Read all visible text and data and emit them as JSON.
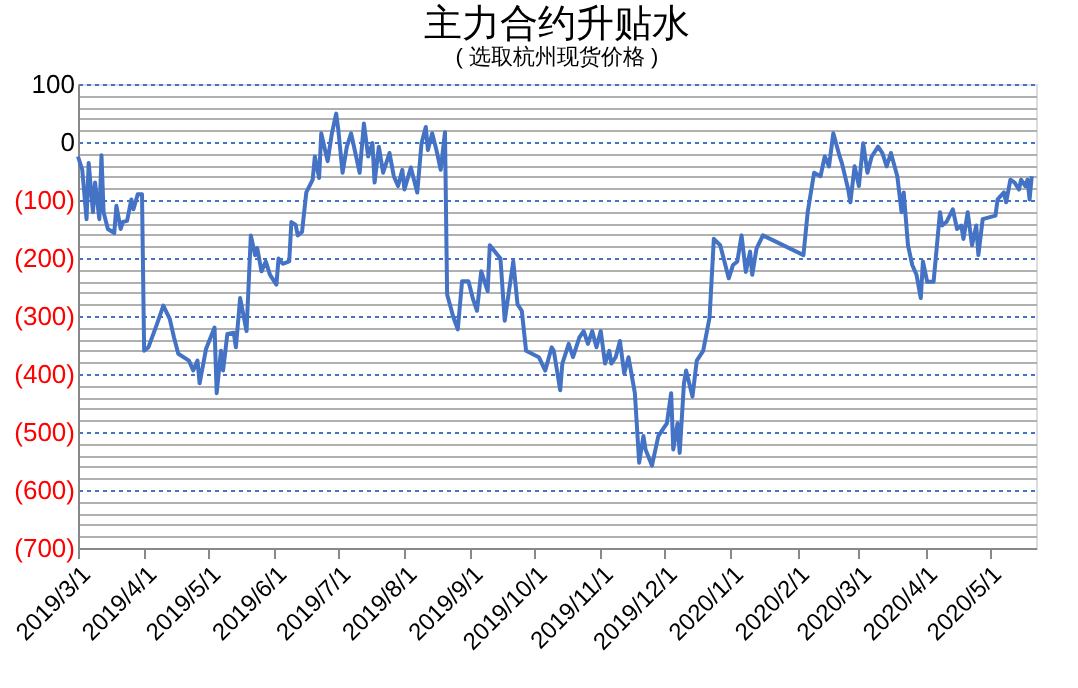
{
  "chart_data": {
    "type": "line",
    "title": "主力合约升贴水",
    "subtitle": "( 选取杭州现货价格 )",
    "x": [
      "2019-03-01",
      "2019-03-03",
      "2019-03-05",
      "2019-03-06",
      "2019-03-08",
      "2019-03-09",
      "2019-03-11",
      "2019-03-12",
      "2019-03-13",
      "2019-03-15",
      "2019-03-18",
      "2019-03-19",
      "2019-03-21",
      "2019-03-22",
      "2019-03-24",
      "2019-03-26",
      "2019-03-27",
      "2019-03-29",
      "2019-03-31",
      "2019-04-01",
      "2019-04-03",
      "2019-04-07",
      "2019-04-10",
      "2019-04-13",
      "2019-04-15",
      "2019-04-17",
      "2019-04-22",
      "2019-04-24",
      "2019-04-26",
      "2019-04-27",
      "2019-04-30",
      "2019-05-04",
      "2019-05-05",
      "2019-05-07",
      "2019-05-08",
      "2019-05-10",
      "2019-05-13",
      "2019-05-14",
      "2019-05-16",
      "2019-05-19",
      "2019-05-21",
      "2019-05-23",
      "2019-05-24",
      "2019-05-26",
      "2019-05-28",
      "2019-05-30",
      "2019-06-02",
      "2019-06-03",
      "2019-06-05",
      "2019-06-08",
      "2019-06-09",
      "2019-06-11",
      "2019-06-12",
      "2019-06-14",
      "2019-06-16",
      "2019-06-19",
      "2019-06-20",
      "2019-06-22",
      "2019-06-23",
      "2019-06-26",
      "2019-06-28",
      "2019-06-30",
      "2019-07-01",
      "2019-07-03",
      "2019-07-05",
      "2019-07-07",
      "2019-07-11",
      "2019-07-13",
      "2019-07-15",
      "2019-07-17",
      "2019-07-18",
      "2019-07-20",
      "2019-07-22",
      "2019-07-25",
      "2019-07-27",
      "2019-07-29",
      "2019-07-31",
      "2019-08-01",
      "2019-08-04",
      "2019-08-07",
      "2019-08-09",
      "2019-08-11",
      "2019-08-12",
      "2019-08-14",
      "2019-08-16",
      "2019-08-18",
      "2019-08-20",
      "2019-08-21",
      "2019-08-24",
      "2019-08-26",
      "2019-08-28",
      "2019-08-31",
      "2019-09-02",
      "2019-09-04",
      "2019-09-06",
      "2019-09-09",
      "2019-09-10",
      "2019-09-13",
      "2019-09-15",
      "2019-09-17",
      "2019-09-19",
      "2019-09-21",
      "2019-09-23",
      "2019-09-25",
      "2019-09-27",
      "2019-10-03",
      "2019-10-06",
      "2019-10-09",
      "2019-10-10",
      "2019-10-13",
      "2019-10-14",
      "2019-10-17",
      "2019-10-19",
      "2019-10-22",
      "2019-10-24",
      "2019-10-26",
      "2019-10-28",
      "2019-10-30",
      "2019-11-01",
      "2019-11-03",
      "2019-11-05",
      "2019-11-06",
      "2019-11-08",
      "2019-11-10",
      "2019-11-12",
      "2019-11-14",
      "2019-11-17",
      "2019-11-19",
      "2019-11-21",
      "2019-11-22",
      "2019-11-25",
      "2019-11-28",
      "2019-11-30",
      "2019-12-02",
      "2019-12-04",
      "2019-12-05",
      "2019-12-07",
      "2019-12-08",
      "2019-12-10",
      "2019-12-11",
      "2019-12-14",
      "2019-12-16",
      "2019-12-19",
      "2019-12-22",
      "2019-12-24",
      "2019-12-27",
      "2019-12-31",
      "2020-01-02",
      "2020-01-04",
      "2020-01-06",
      "2020-01-08",
      "2020-01-10",
      "2020-01-11",
      "2020-01-13",
      "2020-01-16",
      "2020-02-04",
      "2020-02-06",
      "2020-02-09",
      "2020-02-12",
      "2020-02-14",
      "2020-02-16",
      "2020-02-18",
      "2020-02-21",
      "2020-02-22",
      "2020-02-25",
      "2020-02-26",
      "2020-02-28",
      "2020-03-01",
      "2020-03-03",
      "2020-03-05",
      "2020-03-07",
      "2020-03-10",
      "2020-03-12",
      "2020-03-14",
      "2020-03-16",
      "2020-03-19",
      "2020-03-21",
      "2020-03-22",
      "2020-03-24",
      "2020-03-26",
      "2020-03-28",
      "2020-03-30",
      "2020-03-31",
      "2020-04-02",
      "2020-04-05",
      "2020-04-08",
      "2020-04-09",
      "2020-04-11",
      "2020-04-14",
      "2020-04-16",
      "2020-04-18",
      "2020-04-19",
      "2020-04-21",
      "2020-04-23",
      "2020-04-25",
      "2020-04-26",
      "2020-04-28",
      "2020-05-04",
      "2020-05-05",
      "2020-05-08",
      "2020-05-09",
      "2020-05-11",
      "2020-05-13",
      "2020-05-15",
      "2020-05-16",
      "2020-05-18",
      "2020-05-19",
      "2020-05-20",
      "2020-05-21"
    ],
    "series": [
      {
        "color": "#4472c4",
        "values": [
          -25,
          -48,
          -133,
          -36,
          -121,
          -70,
          -133,
          -23,
          -121,
          -150,
          -157,
          -110,
          -150,
          -138,
          -136,
          -99,
          -116,
          -90,
          -90,
          -360,
          -354,
          -314,
          -282,
          -305,
          -337,
          -365,
          -377,
          -394,
          -377,
          -416,
          -357,
          -320,
          -433,
          -360,
          -394,
          -331,
          -329,
          -354,
          -269,
          -326,
          -161,
          -195,
          -183,
          -223,
          -206,
          -229,
          -246,
          -201,
          -210,
          -206,
          -138,
          -143,
          -161,
          -155,
          -87,
          -65,
          -25,
          -62,
          15,
          -33,
          15,
          49,
          21,
          -53,
          -8,
          15,
          -53,
          32,
          -25,
          -2,
          -70,
          -8,
          -53,
          -19,
          -59,
          -76,
          -48,
          -82,
          -44,
          -87,
          -2,
          26,
          -14,
          15,
          -14,
          -48,
          17,
          -263,
          -303,
          -323,
          -240,
          -240,
          -269,
          -291,
          -223,
          -257,
          -178,
          -192,
          -201,
          -308,
          -257,
          -206,
          -280,
          -291,
          -360,
          -371,
          -394,
          -354,
          -360,
          -428,
          -382,
          -348,
          -371,
          -337,
          -326,
          -348,
          -326,
          -354,
          -326,
          -382,
          -360,
          -382,
          -371,
          -343,
          -399,
          -371,
          -433,
          -553,
          -507,
          -530,
          -558,
          -507,
          -496,
          -485,
          -433,
          -530,
          -485,
          -536,
          -416,
          -394,
          -439,
          -377,
          -360,
          -303,
          -167,
          -178,
          -235,
          -212,
          -206,
          -161,
          -224,
          -189,
          -229,
          -184,
          -161,
          -195,
          -121,
          -53,
          -59,
          -25,
          -42,
          15,
          -25,
          -36,
          -82,
          -104,
          -42,
          -76,
          -2,
          -53,
          -25,
          -8,
          -19,
          -42,
          -19,
          -59,
          -121,
          -87,
          -178,
          -212,
          -229,
          -269,
          -206,
          -241,
          -241,
          -121,
          -144,
          -138,
          -116,
          -150,
          -144,
          -167,
          -121,
          -178,
          -144,
          -195,
          -133,
          -127,
          -99,
          -87,
          -104,
          -65,
          -70,
          -82,
          -65,
          -76,
          -65,
          -99,
          -59
        ]
      }
    ],
    "xlim": [
      "2019-03-01",
      "2020-05-23"
    ],
    "xticks": [
      {
        "value": "2019-03-01",
        "label": "2019/3/1"
      },
      {
        "value": "2019-04-01",
        "label": "2019/4/1"
      },
      {
        "value": "2019-05-01",
        "label": "2019/5/1"
      },
      {
        "value": "2019-06-01",
        "label": "2019/6/1"
      },
      {
        "value": "2019-07-01",
        "label": "2019/7/1"
      },
      {
        "value": "2019-08-01",
        "label": "2019/8/1"
      },
      {
        "value": "2019-09-01",
        "label": "2019/9/1"
      },
      {
        "value": "2019-10-01",
        "label": "2019/10/1"
      },
      {
        "value": "2019-11-01",
        "label": "2019/11/1"
      },
      {
        "value": "2019-12-01",
        "label": "2019/12/1"
      },
      {
        "value": "2020-01-01",
        "label": "2020/1/1"
      },
      {
        "value": "2020-02-01",
        "label": "2020/2/1"
      },
      {
        "value": "2020-03-01",
        "label": "2020/3/1"
      },
      {
        "value": "2020-04-01",
        "label": "2020/4/1"
      },
      {
        "value": "2020-05-01",
        "label": "2020/5/1"
      }
    ],
    "ylim": [
      -700,
      100
    ],
    "yticks": [
      100,
      {
        "value": 80,
        "label": null
      },
      {
        "value": 60,
        "label": null
      },
      {
        "value": 40,
        "label": null
      },
      {
        "value": 20,
        "label": null
      },
      0,
      {
        "value": -20,
        "label": null
      },
      {
        "value": -40,
        "label": null
      },
      {
        "value": -60,
        "label": null
      },
      {
        "value": -80,
        "label": null
      },
      {
        "value": -100,
        "label": "(100)"
      },
      {
        "value": -120,
        "label": null
      },
      {
        "value": -140,
        "label": null
      },
      {
        "value": -160,
        "label": null
      },
      {
        "value": -180,
        "label": null
      },
      {
        "value": -200,
        "label": "(200)"
      },
      {
        "value": -220,
        "label": null
      },
      {
        "value": -240,
        "label": null
      },
      {
        "value": -260,
        "label": null
      },
      {
        "value": -280,
        "label": null
      },
      {
        "value": -300,
        "label": "(300)"
      },
      {
        "value": -320,
        "label": null
      },
      {
        "value": -340,
        "label": null
      },
      {
        "value": -360,
        "label": null
      },
      {
        "value": -380,
        "label": null
      },
      {
        "value": -400,
        "label": "(400)"
      },
      {
        "value": -420,
        "label": null
      },
      {
        "value": -440,
        "label": null
      },
      {
        "value": -460,
        "label": null
      },
      {
        "value": -480,
        "label": null
      },
      {
        "value": -500,
        "label": "(500)"
      },
      {
        "value": -520,
        "label": null
      },
      {
        "value": -540,
        "label": null
      },
      {
        "value": -560,
        "label": null
      },
      {
        "value": -580,
        "label": null
      },
      {
        "value": -600,
        "label": "(600)"
      },
      {
        "value": -620,
        "label": null
      },
      {
        "value": -640,
        "label": null
      },
      {
        "value": -660,
        "label": null
      },
      {
        "value": -680,
        "label": null
      },
      {
        "value": -700,
        "label": "(700)"
      }
    ],
    "grid": "y",
    "legend": false,
    "marker": "none",
    "line_style": "solid"
  }
}
